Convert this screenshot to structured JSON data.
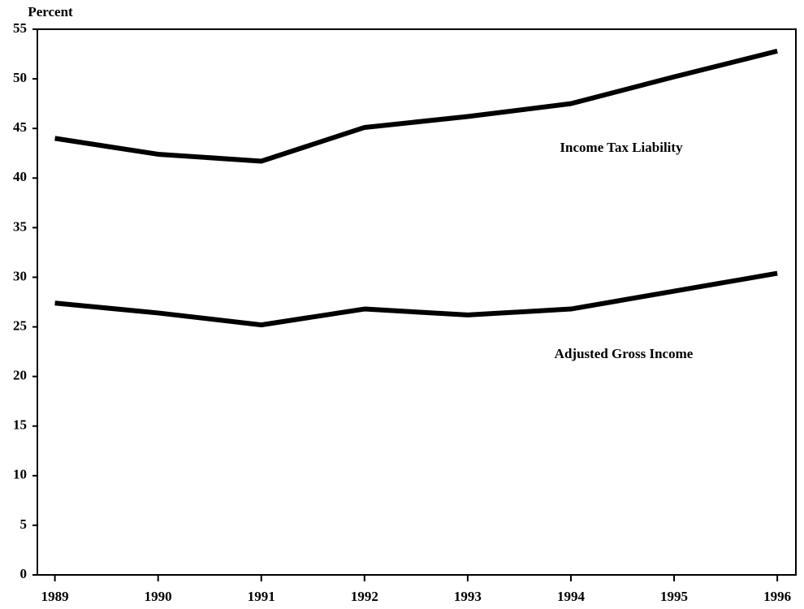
{
  "chart_data": {
    "type": "line",
    "ylabel": "Percent",
    "x": [
      1989,
      1990,
      1991,
      1992,
      1993,
      1994,
      1995,
      1996
    ],
    "series": [
      {
        "name": "Income Tax Liability",
        "color": "#000000",
        "values": [
          44.0,
          42.4,
          41.7,
          45.1,
          46.2,
          47.5,
          50.2,
          52.8
        ]
      },
      {
        "name": "Adjusted Gross Income",
        "color": "#000000",
        "values": [
          27.4,
          26.4,
          25.2,
          26.8,
          26.2,
          26.8,
          28.6,
          30.4
        ]
      }
    ],
    "xlim": [
      1988.83,
      1996.18
    ],
    "xticks": [
      1989,
      1990,
      1991,
      1992,
      1993,
      1994,
      1995,
      1996
    ],
    "ylim": [
      0,
      55
    ],
    "yticks": [
      0,
      5,
      10,
      15,
      20,
      25,
      30,
      35,
      40,
      45,
      50,
      55
    ],
    "grid": false
  }
}
